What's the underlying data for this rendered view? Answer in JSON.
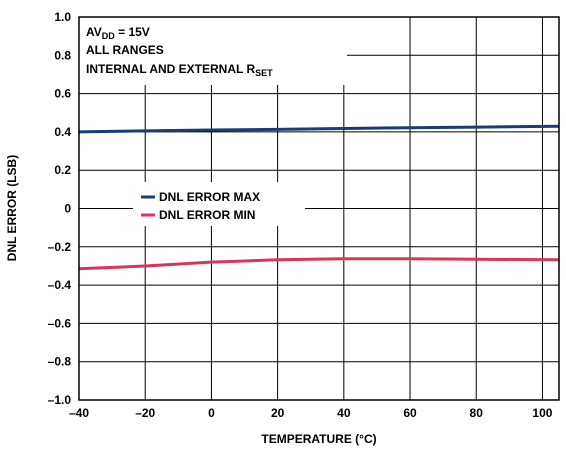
{
  "chart_data": {
    "type": "line",
    "title": "",
    "xlabel": "TEMPERATURE (°C)",
    "ylabel": "DNL ERROR (LSB)",
    "xlim": [
      -40,
      105
    ],
    "ylim": [
      -1.0,
      1.0
    ],
    "grid": true,
    "x_ticks": [
      {
        "value": -40,
        "label": "–40"
      },
      {
        "value": -20,
        "label": "–20"
      },
      {
        "value": 0,
        "label": "0"
      },
      {
        "value": 20,
        "label": "20"
      },
      {
        "value": 40,
        "label": "40"
      },
      {
        "value": 60,
        "label": "60"
      },
      {
        "value": 80,
        "label": "80"
      },
      {
        "value": 100,
        "label": "100"
      }
    ],
    "y_ticks": [
      {
        "value": 1.0,
        "label": "1.0"
      },
      {
        "value": 0.8,
        "label": "0.8"
      },
      {
        "value": 0.6,
        "label": "0.6"
      },
      {
        "value": 0.4,
        "label": "0.4"
      },
      {
        "value": 0.2,
        "label": "0.2"
      },
      {
        "value": 0,
        "label": "0"
      },
      {
        "value": -0.2,
        "label": "–0.2"
      },
      {
        "value": -0.4,
        "label": "–0.4"
      },
      {
        "value": -0.6,
        "label": "–0.6"
      },
      {
        "value": -0.8,
        "label": "–0.8"
      },
      {
        "value": -1.0,
        "label": "–1.0"
      }
    ],
    "annotation": {
      "line1_main": "AV",
      "line1_sub": "DD",
      "line1_rest": " = 15V",
      "line2": "ALL RANGES",
      "line3_main": "INTERNAL AND EXTERNAL R",
      "line3_sub": "SET"
    },
    "legend_position": "center-left",
    "series": [
      {
        "name": "DNL ERROR MAX",
        "color": "#1b3a78",
        "x": [
          -40,
          -20,
          0,
          20,
          40,
          60,
          80,
          105
        ],
        "y": [
          0.4,
          0.405,
          0.41,
          0.413,
          0.418,
          0.422,
          0.425,
          0.43
        ]
      },
      {
        "name": "DNL ERROR MIN",
        "color": "#d9365a",
        "x": [
          -40,
          -20,
          0,
          20,
          40,
          60,
          80,
          105
        ],
        "y": [
          -0.315,
          -0.3,
          -0.28,
          -0.268,
          -0.262,
          -0.262,
          -0.265,
          -0.268
        ]
      }
    ]
  }
}
